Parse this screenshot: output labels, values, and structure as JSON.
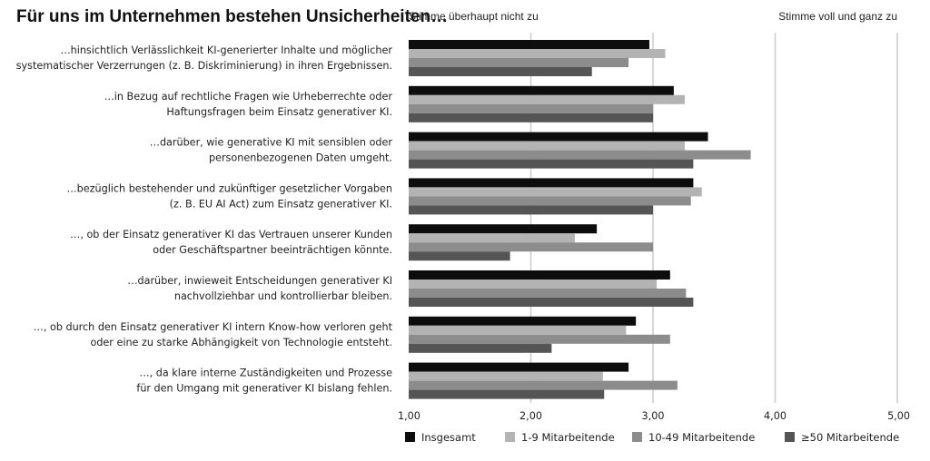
{
  "chart_data": {
    "type": "bar",
    "orientation": "horizontal",
    "title": "Für uns im Unternehmen bestehen Unsicherheiten…",
    "scale_left_label": "Stimme überhaupt nicht zu",
    "scale_right_label": "Stimme voll und ganz zu",
    "xlim": [
      1,
      5
    ],
    "x_ticks": [
      "1,00",
      "2,00",
      "3,00",
      "4,00",
      "5,00"
    ],
    "grid": true,
    "legend_position": "bottom",
    "categories": [
      [
        "…hinsichtlich Verlässlichkeit KI-generierter Inhalte und möglicher",
        "systematischer Verzerrungen (z. B. Diskriminierung) in ihren Ergebnissen."
      ],
      [
        "…in Bezug auf rechtliche Fragen wie Urheberrechte oder",
        "Haftungsfragen beim Einsatz generativer KI."
      ],
      [
        "…darüber, wie generative KI mit sensiblen oder",
        "personenbezogenen Daten umgeht."
      ],
      [
        "…bezüglich bestehender und zukünftiger gesetzlicher Vorgaben",
        "(z. B. EU AI Act) zum Einsatz generativer KI."
      ],
      [
        "…, ob der Einsatz generativer KI das Vertrauen unserer Kunden",
        "oder Geschäftspartner beeinträchtigen könnte."
      ],
      [
        "…darüber, inwieweit Entscheidungen generativer KI",
        "nachvollziehbar und kontrollierbar bleiben."
      ],
      [
        "…, ob durch den Einsatz generativer KI intern Know-how verloren geht",
        "oder eine zu starke Abhängigkeit von Technologie entsteht."
      ],
      [
        "…, da klare interne Zuständigkeiten und Prozesse",
        "für den Umgang mit generativer KI bislang fehlen."
      ]
    ],
    "series": [
      {
        "name": "Insgesamt",
        "color": "#0d0d0d",
        "values": [
          2.97,
          3.17,
          3.45,
          3.33,
          2.54,
          3.14,
          2.86,
          2.8
        ]
      },
      {
        "name": "1-9 Mitarbeitende",
        "color": "#b3b3b3",
        "values": [
          3.1,
          3.26,
          3.26,
          3.4,
          2.36,
          3.03,
          2.78,
          2.59
        ]
      },
      {
        "name": "10-49 Mitarbeitende",
        "color": "#8c8c8c",
        "values": [
          2.8,
          3.0,
          3.8,
          3.31,
          3.0,
          3.27,
          3.14,
          3.2
        ]
      },
      {
        "name": "≥50 Mitarbeitende",
        "color": "#555555",
        "values": [
          2.5,
          3.0,
          3.33,
          3.0,
          1.83,
          3.33,
          2.17,
          2.6
        ]
      }
    ]
  }
}
